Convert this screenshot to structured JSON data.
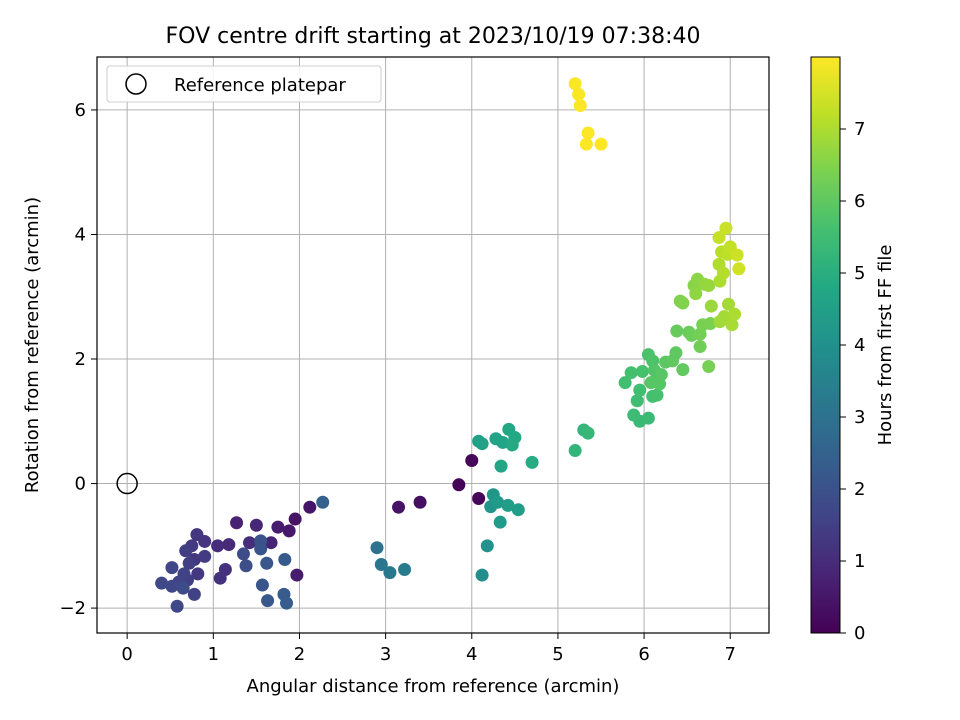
{
  "chart_data": {
    "type": "scatter",
    "title": "FOV centre drift starting at 2023/10/19 07:38:40",
    "xlabel": "Angular distance from reference (arcmin)",
    "ylabel": "Rotation from reference (arcmin)",
    "xlim": [
      -0.35,
      7.45
    ],
    "ylim": [
      -2.4,
      6.85
    ],
    "x_ticks": [
      0,
      1,
      2,
      3,
      4,
      5,
      6,
      7
    ],
    "x_tick_labels": [
      "0",
      "1",
      "2",
      "3",
      "4",
      "5",
      "6",
      "7"
    ],
    "y_ticks": [
      -2,
      0,
      2,
      4,
      6
    ],
    "y_tick_labels": [
      "−2",
      "0",
      "2",
      "4",
      "6"
    ],
    "grid": true,
    "legend": {
      "placement": "top-left",
      "entries": [
        {
          "label": "Reference platepar",
          "marker": "open-circle"
        }
      ]
    },
    "reference_point": {
      "x": 0,
      "y": 0
    },
    "colorbar": {
      "label": "Hours from first FF file",
      "colormap": "viridis",
      "range": [
        0,
        8.0
      ],
      "ticks": [
        0,
        1,
        2,
        3,
        4,
        5,
        6,
        7
      ],
      "tick_labels": [
        "0",
        "1",
        "2",
        "3",
        "4",
        "5",
        "6",
        "7"
      ]
    },
    "points": [
      {
        "x": 3.85,
        "y": -0.02,
        "t": 0.05
      },
      {
        "x": 4.08,
        "y": -0.24,
        "t": 0.1
      },
      {
        "x": 4.0,
        "y": 0.37,
        "t": 0.15
      },
      {
        "x": 3.4,
        "y": -0.3,
        "t": 0.35
      },
      {
        "x": 3.15,
        "y": -0.38,
        "t": 0.4
      },
      {
        "x": 1.95,
        "y": -0.57,
        "t": 0.4
      },
      {
        "x": 2.12,
        "y": -0.38,
        "t": 0.45
      },
      {
        "x": 1.88,
        "y": -0.76,
        "t": 0.55
      },
      {
        "x": 1.97,
        "y": -1.47,
        "t": 0.6
      },
      {
        "x": 1.75,
        "y": -0.7,
        "t": 0.65
      },
      {
        "x": 1.27,
        "y": -0.63,
        "t": 0.75
      },
      {
        "x": 1.67,
        "y": -0.95,
        "t": 0.8
      },
      {
        "x": 1.5,
        "y": -0.67,
        "t": 0.9
      },
      {
        "x": 1.18,
        "y": -0.98,
        "t": 0.95
      },
      {
        "x": 1.05,
        "y": -1.0,
        "t": 1.0
      },
      {
        "x": 1.42,
        "y": -0.95,
        "t": 1.05
      },
      {
        "x": 1.14,
        "y": -1.38,
        "t": 1.1
      },
      {
        "x": 1.08,
        "y": -1.52,
        "t": 1.15
      },
      {
        "x": 0.9,
        "y": -0.93,
        "t": 1.2
      },
      {
        "x": 0.81,
        "y": -0.82,
        "t": 1.25
      },
      {
        "x": 0.78,
        "y": -1.22,
        "t": 1.25
      },
      {
        "x": 0.82,
        "y": -1.45,
        "t": 1.3
      },
      {
        "x": 0.75,
        "y": -1.0,
        "t": 1.35
      },
      {
        "x": 0.9,
        "y": -1.17,
        "t": 1.4
      },
      {
        "x": 0.68,
        "y": -1.08,
        "t": 1.45
      },
      {
        "x": 0.72,
        "y": -1.28,
        "t": 1.45
      },
      {
        "x": 0.7,
        "y": -1.55,
        "t": 1.5
      },
      {
        "x": 0.78,
        "y": -1.78,
        "t": 1.55
      },
      {
        "x": 0.66,
        "y": -1.45,
        "t": 1.55
      },
      {
        "x": 0.6,
        "y": -1.58,
        "t": 1.6
      },
      {
        "x": 0.52,
        "y": -1.35,
        "t": 1.65
      },
      {
        "x": 0.52,
        "y": -1.65,
        "t": 1.7
      },
      {
        "x": 0.4,
        "y": -1.6,
        "t": 1.75
      },
      {
        "x": 0.58,
        "y": -1.97,
        "t": 1.75
      },
      {
        "x": 0.65,
        "y": -1.68,
        "t": 1.8
      },
      {
        "x": 1.35,
        "y": -1.13,
        "t": 1.85
      },
      {
        "x": 1.38,
        "y": -1.32,
        "t": 1.9
      },
      {
        "x": 1.55,
        "y": -0.92,
        "t": 2.0
      },
      {
        "x": 1.55,
        "y": -1.05,
        "t": 2.05
      },
      {
        "x": 1.57,
        "y": -1.63,
        "t": 2.1
      },
      {
        "x": 1.62,
        "y": -1.28,
        "t": 2.15
      },
      {
        "x": 1.63,
        "y": -1.88,
        "t": 2.2
      },
      {
        "x": 1.83,
        "y": -1.22,
        "t": 2.25
      },
      {
        "x": 1.82,
        "y": -1.78,
        "t": 2.3
      },
      {
        "x": 1.85,
        "y": -1.92,
        "t": 2.35
      },
      {
        "x": 2.27,
        "y": -0.3,
        "t": 2.5
      },
      {
        "x": 2.9,
        "y": -1.03,
        "t": 3.0
      },
      {
        "x": 2.95,
        "y": -1.3,
        "t": 3.1
      },
      {
        "x": 3.05,
        "y": -1.43,
        "t": 3.2
      },
      {
        "x": 3.22,
        "y": -1.38,
        "t": 3.3
      },
      {
        "x": 4.12,
        "y": -1.47,
        "t": 3.95
      },
      {
        "x": 4.18,
        "y": -1.0,
        "t": 4.05
      },
      {
        "x": 4.22,
        "y": -0.37,
        "t": 4.15
      },
      {
        "x": 4.25,
        "y": -0.18,
        "t": 4.2
      },
      {
        "x": 4.3,
        "y": -0.3,
        "t": 4.3
      },
      {
        "x": 4.33,
        "y": -0.62,
        "t": 4.35
      },
      {
        "x": 4.42,
        "y": -0.35,
        "t": 4.4
      },
      {
        "x": 4.54,
        "y": -0.42,
        "t": 4.45
      },
      {
        "x": 4.08,
        "y": 0.68,
        "t": 4.5
      },
      {
        "x": 4.12,
        "y": 0.64,
        "t": 4.55
      },
      {
        "x": 4.28,
        "y": 0.72,
        "t": 4.6
      },
      {
        "x": 4.36,
        "y": 0.66,
        "t": 4.65
      },
      {
        "x": 4.34,
        "y": 0.28,
        "t": 4.7
      },
      {
        "x": 4.43,
        "y": 0.87,
        "t": 4.75
      },
      {
        "x": 4.5,
        "y": 0.74,
        "t": 4.8
      },
      {
        "x": 4.47,
        "y": 0.62,
        "t": 4.85
      },
      {
        "x": 4.7,
        "y": 0.34,
        "t": 4.9
      },
      {
        "x": 5.2,
        "y": 0.53,
        "t": 5.2
      },
      {
        "x": 5.3,
        "y": 0.86,
        "t": 5.25
      },
      {
        "x": 5.35,
        "y": 0.81,
        "t": 5.3
      },
      {
        "x": 5.95,
        "y": 1.0,
        "t": 5.35
      },
      {
        "x": 6.05,
        "y": 1.05,
        "t": 5.4
      },
      {
        "x": 5.88,
        "y": 1.1,
        "t": 5.45
      },
      {
        "x": 5.92,
        "y": 1.33,
        "t": 5.5
      },
      {
        "x": 5.95,
        "y": 1.5,
        "t": 5.55
      },
      {
        "x": 5.78,
        "y": 1.62,
        "t": 5.55
      },
      {
        "x": 5.85,
        "y": 1.78,
        "t": 5.6
      },
      {
        "x": 6.1,
        "y": 1.4,
        "t": 5.6
      },
      {
        "x": 6.15,
        "y": 1.42,
        "t": 5.65
      },
      {
        "x": 5.98,
        "y": 1.8,
        "t": 5.65
      },
      {
        "x": 6.05,
        "y": 2.07,
        "t": 5.7
      },
      {
        "x": 6.1,
        "y": 1.97,
        "t": 5.75
      },
      {
        "x": 6.12,
        "y": 1.82,
        "t": 5.8
      },
      {
        "x": 6.15,
        "y": 1.7,
        "t": 5.8
      },
      {
        "x": 6.18,
        "y": 1.6,
        "t": 5.85
      },
      {
        "x": 6.08,
        "y": 1.62,
        "t": 5.9
      },
      {
        "x": 6.2,
        "y": 1.75,
        "t": 5.9
      },
      {
        "x": 6.25,
        "y": 1.95,
        "t": 5.95
      },
      {
        "x": 6.33,
        "y": 1.97,
        "t": 6.0
      },
      {
        "x": 6.37,
        "y": 2.1,
        "t": 6.0
      },
      {
        "x": 6.45,
        "y": 1.83,
        "t": 6.05
      },
      {
        "x": 6.38,
        "y": 2.45,
        "t": 6.1
      },
      {
        "x": 6.52,
        "y": 2.43,
        "t": 6.15
      },
      {
        "x": 6.55,
        "y": 2.38,
        "t": 6.2
      },
      {
        "x": 6.65,
        "y": 2.2,
        "t": 6.25
      },
      {
        "x": 6.65,
        "y": 2.4,
        "t": 6.3
      },
      {
        "x": 6.68,
        "y": 2.55,
        "t": 6.35
      },
      {
        "x": 6.75,
        "y": 1.88,
        "t": 6.35
      },
      {
        "x": 6.77,
        "y": 2.57,
        "t": 6.4
      },
      {
        "x": 6.42,
        "y": 2.93,
        "t": 6.45
      },
      {
        "x": 6.45,
        "y": 2.9,
        "t": 6.5
      },
      {
        "x": 6.58,
        "y": 3.18,
        "t": 6.55
      },
      {
        "x": 6.62,
        "y": 3.28,
        "t": 6.6
      },
      {
        "x": 6.6,
        "y": 3.05,
        "t": 6.65
      },
      {
        "x": 6.7,
        "y": 3.2,
        "t": 6.7
      },
      {
        "x": 6.75,
        "y": 3.18,
        "t": 6.75
      },
      {
        "x": 6.78,
        "y": 2.85,
        "t": 6.8
      },
      {
        "x": 6.88,
        "y": 2.6,
        "t": 6.85
      },
      {
        "x": 6.93,
        "y": 2.68,
        "t": 6.9
      },
      {
        "x": 6.98,
        "y": 2.88,
        "t": 6.9
      },
      {
        "x": 7.02,
        "y": 2.55,
        "t": 6.95
      },
      {
        "x": 7.05,
        "y": 2.72,
        "t": 7.0
      },
      {
        "x": 6.88,
        "y": 3.25,
        "t": 7.0
      },
      {
        "x": 6.87,
        "y": 3.52,
        "t": 7.05
      },
      {
        "x": 6.92,
        "y": 3.38,
        "t": 7.1
      },
      {
        "x": 6.9,
        "y": 3.72,
        "t": 7.15
      },
      {
        "x": 6.97,
        "y": 3.68,
        "t": 7.2
      },
      {
        "x": 7.0,
        "y": 3.8,
        "t": 7.25
      },
      {
        "x": 6.87,
        "y": 3.95,
        "t": 7.3
      },
      {
        "x": 6.95,
        "y": 4.1,
        "t": 7.35
      },
      {
        "x": 7.08,
        "y": 3.67,
        "t": 7.4
      },
      {
        "x": 7.1,
        "y": 3.45,
        "t": 7.45
      },
      {
        "x": 5.2,
        "y": 6.42,
        "t": 7.95
      },
      {
        "x": 5.24,
        "y": 6.25,
        "t": 7.95
      },
      {
        "x": 5.26,
        "y": 6.07,
        "t": 7.97
      },
      {
        "x": 5.35,
        "y": 5.63,
        "t": 7.98
      },
      {
        "x": 5.33,
        "y": 5.45,
        "t": 7.98
      },
      {
        "x": 5.5,
        "y": 5.45,
        "t": 8.0
      }
    ]
  },
  "colors": {
    "viridis_stops": [
      "#440154",
      "#482475",
      "#414487",
      "#355f8d",
      "#2a788e",
      "#21918c",
      "#22a884",
      "#44bf70",
      "#7ad151",
      "#bddf26",
      "#fde725"
    ],
    "grid": "#b0b0b0",
    "axis": "#000000"
  }
}
